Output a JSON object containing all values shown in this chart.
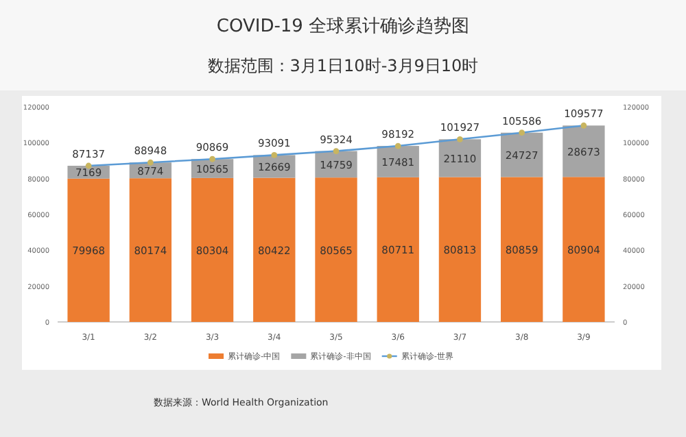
{
  "chart_data": {
    "type": "bar",
    "title": "COVID-19 全球累计确诊趋势图",
    "subtitle": "数据范围：3月1日10时-3月9日10时",
    "categories": [
      "3/1",
      "3/2",
      "3/3",
      "3/4",
      "3/5",
      "3/6",
      "3/7",
      "3/8",
      "3/9"
    ],
    "stacked": true,
    "data_labels": true,
    "legend": "bottom",
    "grid": false,
    "ylim": [
      0,
      120000
    ],
    "yticks": [
      0,
      20000,
      40000,
      60000,
      80000,
      100000,
      120000
    ],
    "y2lim": [
      0,
      120000
    ],
    "y2ticks": [
      0,
      20000,
      40000,
      60000,
      80000,
      100000,
      120000
    ],
    "series": [
      {
        "name": "累计确诊-中国",
        "color": "#ed7d31",
        "values": [
          79968,
          80174,
          80304,
          80422,
          80565,
          80711,
          80813,
          80859,
          80904
        ]
      },
      {
        "name": "累计确诊-非中国",
        "color": "#a5a5a5",
        "values": [
          7169,
          8774,
          10565,
          12669,
          14759,
          17481,
          21110,
          24727,
          28673
        ]
      },
      {
        "name": "累计确诊-世界",
        "type": "line",
        "color": "#5b9bd5",
        "marker": "circle",
        "values": [
          87137,
          88948,
          90869,
          93091,
          95324,
          98192,
          101927,
          105586,
          109577
        ]
      }
    ],
    "annotations": [
      "数据来源：World Health Organization"
    ]
  }
}
